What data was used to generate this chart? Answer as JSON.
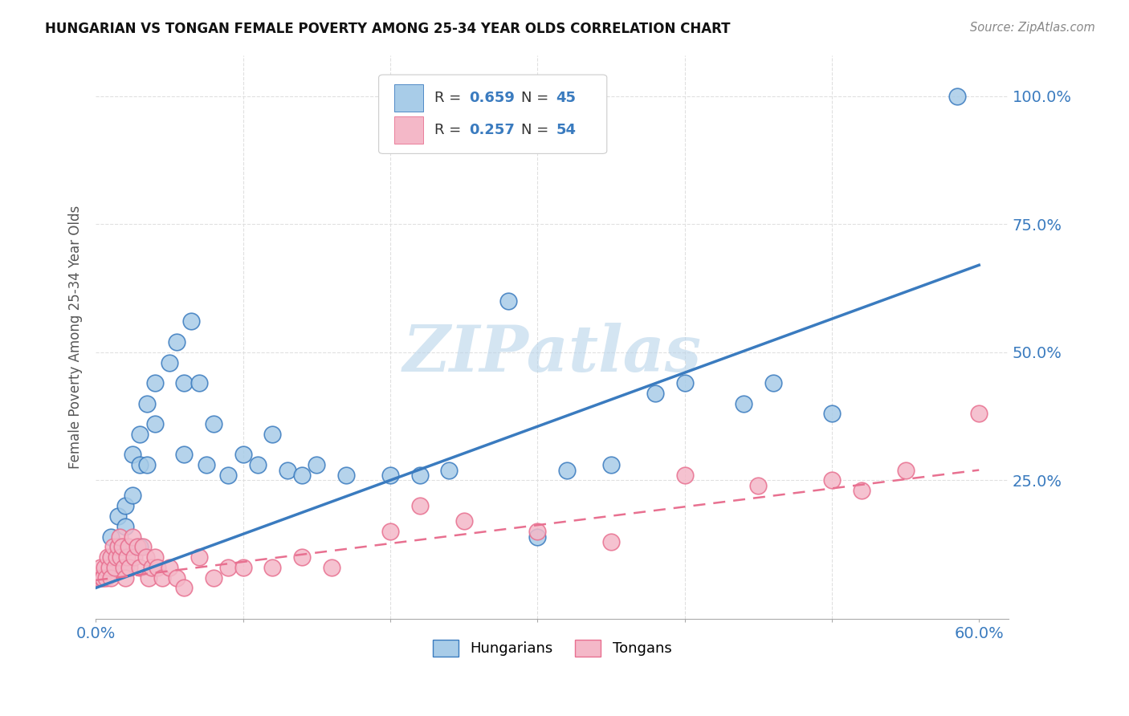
{
  "title": "HUNGARIAN VS TONGAN FEMALE POVERTY AMONG 25-34 YEAR OLDS CORRELATION CHART",
  "source": "Source: ZipAtlas.com",
  "ylabel": "Female Poverty Among 25-34 Year Olds",
  "xlim": [
    0.0,
    0.62
  ],
  "ylim": [
    -0.02,
    1.08
  ],
  "hungarian_color": "#a8cce8",
  "tongan_color": "#f4b8c8",
  "hungarian_line_color": "#3a7bbf",
  "tongan_line_color": "#e87090",
  "watermark": "ZIPatlas",
  "background_color": "#ffffff",
  "grid_color": "#e0e0e0",
  "hungarian_scatter_x": [
    0.01,
    0.01,
    0.015,
    0.015,
    0.02,
    0.02,
    0.02,
    0.025,
    0.025,
    0.03,
    0.03,
    0.03,
    0.035,
    0.035,
    0.04,
    0.04,
    0.05,
    0.055,
    0.06,
    0.06,
    0.065,
    0.07,
    0.075,
    0.08,
    0.09,
    0.1,
    0.11,
    0.12,
    0.13,
    0.14,
    0.15,
    0.17,
    0.2,
    0.22,
    0.24,
    0.28,
    0.3,
    0.32,
    0.35,
    0.38,
    0.4,
    0.44,
    0.46,
    0.5,
    0.585
  ],
  "hungarian_scatter_y": [
    0.14,
    0.1,
    0.18,
    0.12,
    0.2,
    0.16,
    0.08,
    0.22,
    0.3,
    0.28,
    0.34,
    0.12,
    0.4,
    0.28,
    0.44,
    0.36,
    0.48,
    0.52,
    0.44,
    0.3,
    0.56,
    0.44,
    0.28,
    0.36,
    0.26,
    0.3,
    0.28,
    0.34,
    0.27,
    0.26,
    0.28,
    0.26,
    0.26,
    0.26,
    0.27,
    0.6,
    0.14,
    0.27,
    0.28,
    0.42,
    0.44,
    0.4,
    0.44,
    0.38,
    1.0
  ],
  "tongan_scatter_x": [
    0.002,
    0.003,
    0.004,
    0.005,
    0.006,
    0.007,
    0.008,
    0.009,
    0.01,
    0.01,
    0.012,
    0.013,
    0.014,
    0.015,
    0.016,
    0.017,
    0.018,
    0.019,
    0.02,
    0.021,
    0.022,
    0.023,
    0.025,
    0.026,
    0.028,
    0.03,
    0.032,
    0.034,
    0.036,
    0.038,
    0.04,
    0.042,
    0.045,
    0.05,
    0.055,
    0.06,
    0.07,
    0.08,
    0.09,
    0.1,
    0.12,
    0.14,
    0.16,
    0.2,
    0.22,
    0.25,
    0.3,
    0.35,
    0.4,
    0.45,
    0.5,
    0.52,
    0.55,
    0.6
  ],
  "tongan_scatter_y": [
    0.06,
    0.08,
    0.06,
    0.06,
    0.08,
    0.06,
    0.1,
    0.08,
    0.06,
    0.1,
    0.12,
    0.08,
    0.1,
    0.12,
    0.14,
    0.1,
    0.12,
    0.08,
    0.06,
    0.1,
    0.12,
    0.08,
    0.14,
    0.1,
    0.12,
    0.08,
    0.12,
    0.1,
    0.06,
    0.08,
    0.1,
    0.08,
    0.06,
    0.08,
    0.06,
    0.04,
    0.1,
    0.06,
    0.08,
    0.08,
    0.08,
    0.1,
    0.08,
    0.15,
    0.2,
    0.17,
    0.15,
    0.13,
    0.26,
    0.24,
    0.25,
    0.23,
    0.27,
    0.38
  ],
  "hungarian_line_x0": 0.0,
  "hungarian_line_y0": 0.04,
  "hungarian_line_x1": 0.6,
  "hungarian_line_y1": 0.67,
  "tongan_line_x0": 0.0,
  "tongan_line_y0": 0.055,
  "tongan_line_x1": 0.6,
  "tongan_line_y1": 0.27
}
